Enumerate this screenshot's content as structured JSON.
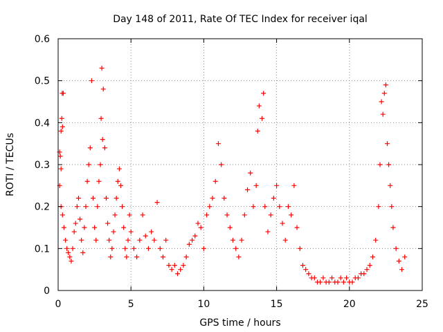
{
  "chart_data": {
    "type": "scatter",
    "title": "Day 148 of 2011, Rate Of TEC Index for receiver iqal",
    "xlabel": "GPS time / hours",
    "ylabel": "ROTI / TECUs",
    "xlim": [
      0,
      25
    ],
    "ylim": [
      0,
      0.6
    ],
    "x_ticks": [
      0,
      5,
      10,
      15,
      20,
      25
    ],
    "y_ticks": [
      0,
      0.1,
      0.2,
      0.3,
      0.4,
      0.5,
      0.6
    ],
    "x_tick_labels": [
      "0",
      "5",
      "10",
      "15",
      "20",
      "25"
    ],
    "y_tick_labels": [
      "0",
      "0.1",
      "0.2",
      "0.3",
      "0.4",
      "0.5",
      "0.6"
    ],
    "grid": true,
    "marker": "+",
    "color": "#ff0000",
    "points": [
      [
        0.1,
        0.33
      ],
      [
        0.15,
        0.32
      ],
      [
        0.2,
        0.29
      ],
      [
        0.25,
        0.41
      ],
      [
        0.28,
        0.47
      ],
      [
        0.35,
        0.47
      ],
      [
        0.3,
        0.39
      ],
      [
        0.2,
        0.38
      ],
      [
        0.1,
        0.25
      ],
      [
        0.2,
        0.2
      ],
      [
        0.3,
        0.18
      ],
      [
        0.4,
        0.15
      ],
      [
        0.5,
        0.12
      ],
      [
        0.6,
        0.1
      ],
      [
        0.7,
        0.09
      ],
      [
        0.8,
        0.08
      ],
      [
        0.9,
        0.07
      ],
      [
        1.0,
        0.1
      ],
      [
        1.1,
        0.14
      ],
      [
        1.2,
        0.16
      ],
      [
        1.3,
        0.2
      ],
      [
        1.4,
        0.22
      ],
      [
        1.5,
        0.17
      ],
      [
        1.6,
        0.12
      ],
      [
        1.7,
        0.09
      ],
      [
        1.8,
        0.15
      ],
      [
        1.9,
        0.2
      ],
      [
        2.0,
        0.26
      ],
      [
        2.1,
        0.3
      ],
      [
        2.2,
        0.34
      ],
      [
        2.3,
        0.5
      ],
      [
        2.4,
        0.22
      ],
      [
        2.5,
        0.15
      ],
      [
        2.6,
        0.12
      ],
      [
        2.7,
        0.2
      ],
      [
        2.8,
        0.26
      ],
      [
        2.9,
        0.3
      ],
      [
        2.95,
        0.41
      ],
      [
        3.0,
        0.53
      ],
      [
        3.05,
        0.36
      ],
      [
        3.1,
        0.48
      ],
      [
        3.2,
        0.34
      ],
      [
        3.3,
        0.22
      ],
      [
        3.4,
        0.16
      ],
      [
        3.5,
        0.12
      ],
      [
        3.6,
        0.08
      ],
      [
        3.7,
        0.1
      ],
      [
        3.8,
        0.14
      ],
      [
        3.9,
        0.18
      ],
      [
        4.0,
        0.22
      ],
      [
        4.1,
        0.26
      ],
      [
        4.2,
        0.29
      ],
      [
        4.3,
        0.25
      ],
      [
        4.4,
        0.2
      ],
      [
        4.5,
        0.15
      ],
      [
        4.6,
        0.1
      ],
      [
        4.7,
        0.08
      ],
      [
        4.8,
        0.12
      ],
      [
        4.9,
        0.18
      ],
      [
        5.0,
        0.14
      ],
      [
        5.2,
        0.1
      ],
      [
        5.4,
        0.08
      ],
      [
        5.6,
        0.12
      ],
      [
        5.8,
        0.18
      ],
      [
        6.0,
        0.13
      ],
      [
        6.2,
        0.1
      ],
      [
        6.4,
        0.14
      ],
      [
        6.6,
        0.12
      ],
      [
        6.8,
        0.21
      ],
      [
        7.0,
        0.1
      ],
      [
        7.2,
        0.08
      ],
      [
        7.4,
        0.12
      ],
      [
        7.6,
        0.06
      ],
      [
        7.8,
        0.05
      ],
      [
        8.0,
        0.06
      ],
      [
        8.2,
        0.04
      ],
      [
        8.4,
        0.05
      ],
      [
        8.6,
        0.06
      ],
      [
        8.8,
        0.08
      ],
      [
        9.0,
        0.11
      ],
      [
        9.2,
        0.12
      ],
      [
        9.4,
        0.13
      ],
      [
        9.6,
        0.16
      ],
      [
        9.8,
        0.15
      ],
      [
        10.0,
        0.1
      ],
      [
        10.2,
        0.18
      ],
      [
        10.4,
        0.2
      ],
      [
        10.6,
        0.22
      ],
      [
        10.8,
        0.26
      ],
      [
        11.0,
        0.35
      ],
      [
        11.2,
        0.3
      ],
      [
        11.4,
        0.22
      ],
      [
        11.6,
        0.18
      ],
      [
        11.8,
        0.15
      ],
      [
        12.0,
        0.12
      ],
      [
        12.2,
        0.1
      ],
      [
        12.4,
        0.08
      ],
      [
        12.6,
        0.12
      ],
      [
        12.8,
        0.18
      ],
      [
        13.0,
        0.24
      ],
      [
        13.2,
        0.28
      ],
      [
        13.4,
        0.2
      ],
      [
        13.6,
        0.25
      ],
      [
        13.7,
        0.38
      ],
      [
        13.8,
        0.44
      ],
      [
        14.0,
        0.41
      ],
      [
        14.1,
        0.47
      ],
      [
        14.2,
        0.2
      ],
      [
        14.4,
        0.14
      ],
      [
        14.6,
        0.18
      ],
      [
        14.8,
        0.22
      ],
      [
        15.0,
        0.25
      ],
      [
        15.2,
        0.2
      ],
      [
        15.4,
        0.16
      ],
      [
        15.6,
        0.12
      ],
      [
        15.8,
        0.2
      ],
      [
        16.0,
        0.18
      ],
      [
        16.2,
        0.25
      ],
      [
        16.4,
        0.15
      ],
      [
        16.6,
        0.1
      ],
      [
        16.8,
        0.06
      ],
      [
        17.0,
        0.05
      ],
      [
        17.2,
        0.04
      ],
      [
        17.4,
        0.03
      ],
      [
        17.6,
        0.03
      ],
      [
        17.8,
        0.02
      ],
      [
        18.0,
        0.02
      ],
      [
        18.2,
        0.03
      ],
      [
        18.4,
        0.02
      ],
      [
        18.6,
        0.02
      ],
      [
        18.8,
        0.03
      ],
      [
        19.0,
        0.02
      ],
      [
        19.2,
        0.02
      ],
      [
        19.4,
        0.03
      ],
      [
        19.6,
        0.02
      ],
      [
        19.8,
        0.03
      ],
      [
        20.0,
        0.02
      ],
      [
        20.2,
        0.02
      ],
      [
        20.4,
        0.03
      ],
      [
        20.6,
        0.03
      ],
      [
        20.8,
        0.04
      ],
      [
        21.0,
        0.04
      ],
      [
        21.2,
        0.05
      ],
      [
        21.4,
        0.06
      ],
      [
        21.6,
        0.08
      ],
      [
        21.8,
        0.12
      ],
      [
        22.0,
        0.2
      ],
      [
        22.1,
        0.3
      ],
      [
        22.2,
        0.45
      ],
      [
        22.3,
        0.42
      ],
      [
        22.4,
        0.47
      ],
      [
        22.5,
        0.49
      ],
      [
        22.6,
        0.35
      ],
      [
        22.7,
        0.3
      ],
      [
        22.8,
        0.25
      ],
      [
        22.9,
        0.2
      ],
      [
        23.0,
        0.15
      ],
      [
        23.2,
        0.1
      ],
      [
        23.4,
        0.07
      ],
      [
        23.6,
        0.05
      ],
      [
        23.8,
        0.08
      ]
    ]
  }
}
